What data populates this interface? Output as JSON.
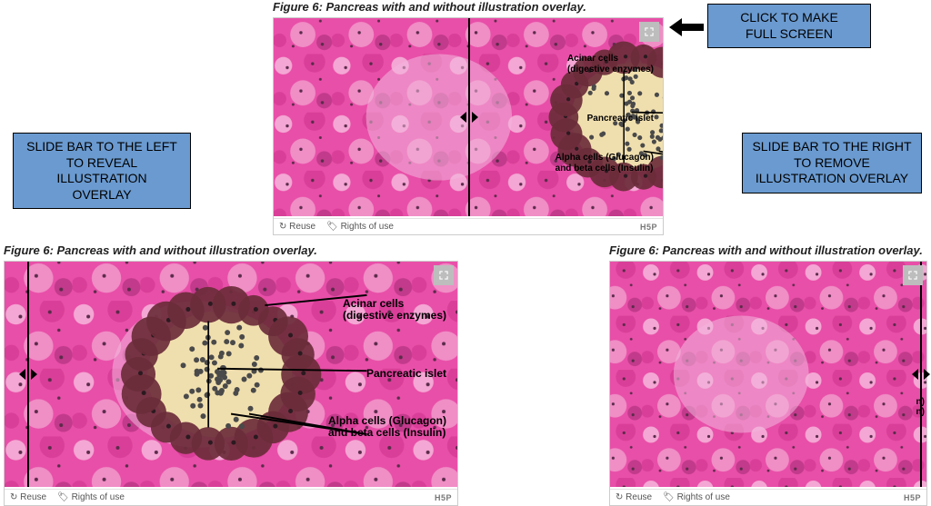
{
  "caption": "Figure 6: Pancreas with and without illustration overlay.",
  "callouts": {
    "fullscreen": "CLICK TO MAKE\nFULL SCREEN",
    "left": "SLIDE BAR TO THE LEFT\nTO REVEAL ILLUSTRATION\nOVERLAY",
    "right": "SLIDE BAR TO THE RIGHT\nTO REMOVE\nILLUSTRATION OVERLAY"
  },
  "labels": {
    "acinar": "Acinar cells\n(digestive enzymes)",
    "islet": "Pancreatic islet",
    "alpha_beta": "Alpha cells (Glucagon)\nand beta cells (Insulin)"
  },
  "footer": {
    "reuse": "Reuse",
    "rights": "Rights of use",
    "brand": "H5P"
  },
  "colors": {
    "callout_bg": "#6a9ad0",
    "tissue_pink": "#e84fa8",
    "tissue_deep": "#c23a8b",
    "tissue_light": "#f4a7d4",
    "islet_fill": "#f0dfae",
    "acinar_dark": "#6b2c3a",
    "nucleus": "#4a4a4a"
  },
  "panels": {
    "top": {
      "slider_pct": 50,
      "show_overlay": true,
      "show_labels": true
    },
    "left": {
      "slider_pct": 5,
      "show_overlay": true,
      "show_labels": true
    },
    "right": {
      "slider_pct": 98,
      "show_overlay": false,
      "show_labels": false
    }
  }
}
